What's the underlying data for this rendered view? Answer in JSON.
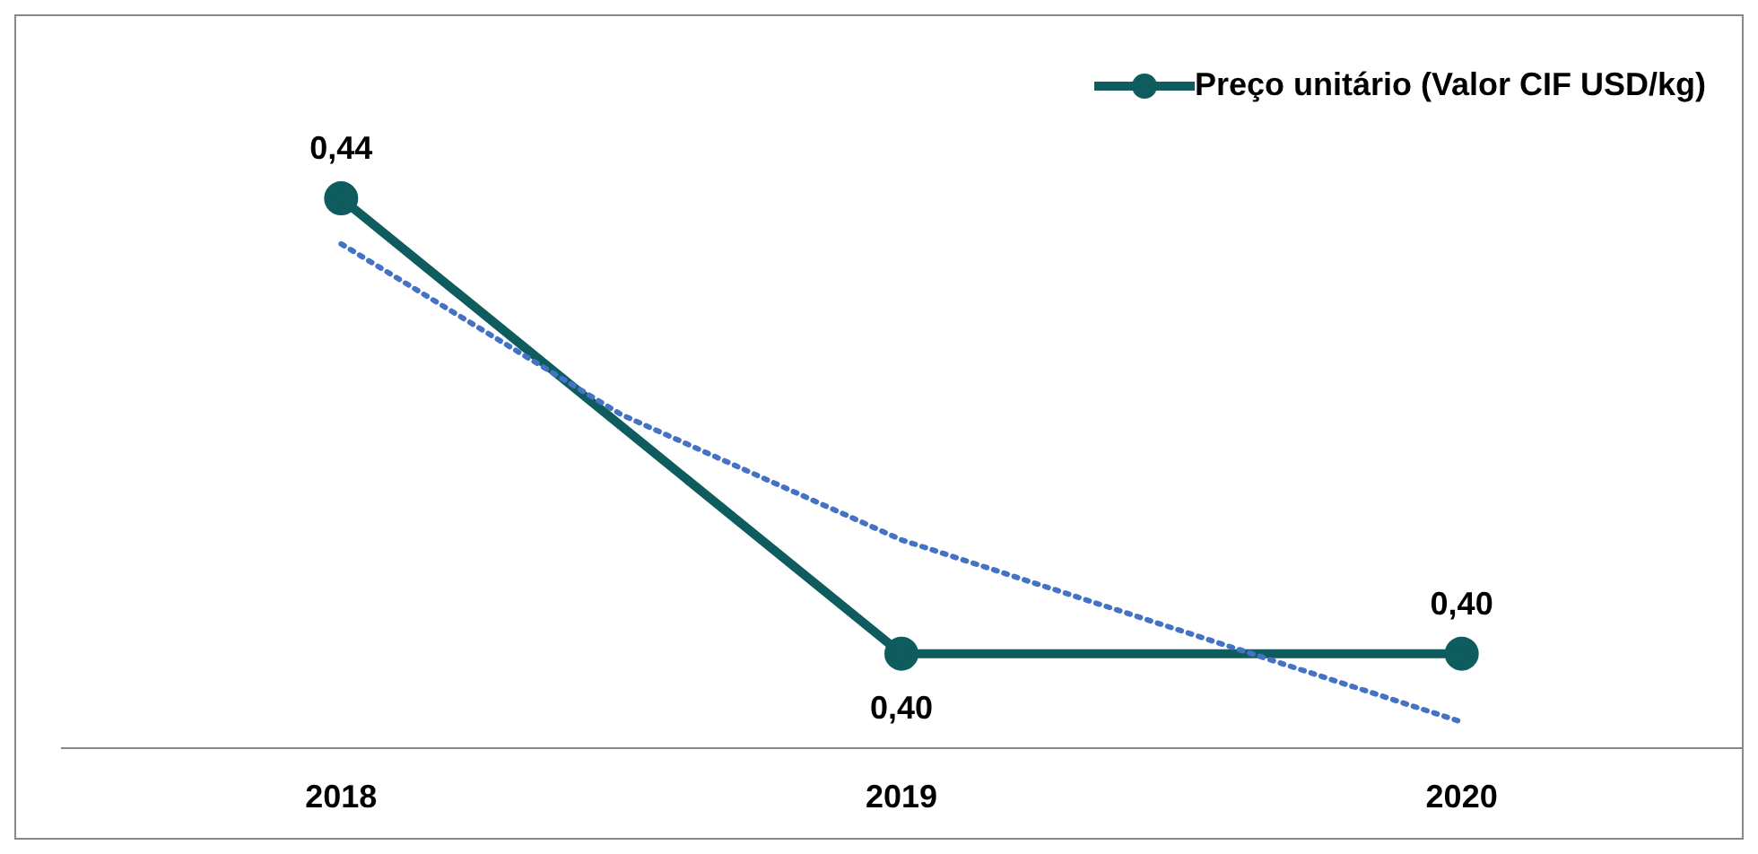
{
  "chart_data": {
    "type": "line",
    "x": [
      2018,
      2019,
      2020
    ],
    "xlim": [
      2017.5,
      2020.5
    ],
    "xticks": [
      2018,
      2019,
      2020
    ],
    "series": [
      {
        "name": "Preço unitário (Valor CIF USD/kg)",
        "color": "#0f5c5f",
        "values": [
          0.44,
          0.4,
          0.4
        ],
        "marker": "circle",
        "line_style": "solid",
        "value_labels": [
          "0,44",
          "0,40",
          "0,40"
        ]
      },
      {
        "type": "line",
        "x": [
          2018,
          2018.5,
          2019,
          2019.5,
          2020
        ],
        "color": "#4472c4",
        "values": [
          0.436,
          0.421,
          0.41,
          0.402,
          0.394
        ],
        "marker": "none",
        "line_style": "dotted"
      }
    ],
    "tick_labels": "x",
    "legend": "top right"
  }
}
